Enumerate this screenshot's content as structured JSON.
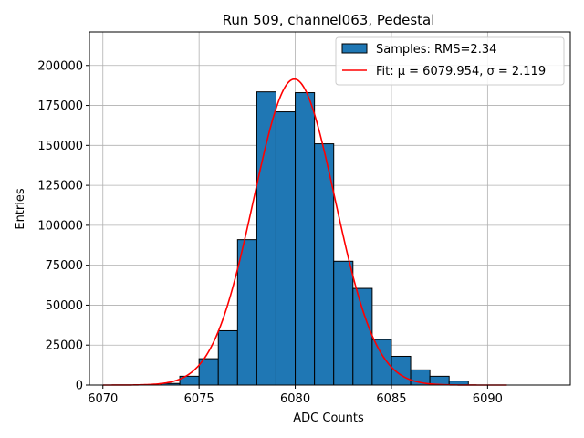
{
  "chart_data": {
    "type": "bar",
    "title": "Run 509, channel063, Pedestal",
    "xlabel": "ADC Counts",
    "ylabel": "Entries",
    "xlim": [
      6069.3,
      6094.3
    ],
    "ylim": [
      0,
      221000
    ],
    "xticks": [
      6070,
      6075,
      6080,
      6085,
      6090
    ],
    "yticks": [
      0,
      25000,
      50000,
      75000,
      100000,
      125000,
      150000,
      175000,
      200000
    ],
    "grid": true,
    "legend_position": "top-right",
    "colors": {
      "bar_fill": "#1f77b4",
      "bar_edge": "#000000",
      "fit_line": "#ff0000",
      "grid": "#b0b0b0"
    },
    "histogram": {
      "name": "Samples: RMS=2.34",
      "bin_width": 1,
      "bin_left_edges": [
        6073,
        6074,
        6075,
        6076,
        6077,
        6078,
        6079,
        6080,
        6081,
        6082,
        6083,
        6084,
        6085,
        6086,
        6087,
        6088
      ],
      "counts": [
        1000,
        5500,
        16500,
        34000,
        91000,
        183500,
        171000,
        183000,
        151000,
        77500,
        60500,
        28500,
        18000,
        9500,
        5500,
        2500
      ]
    },
    "fit": {
      "name": "Fit: μ = 6079.954, σ = 2.119",
      "mu": 6079.954,
      "sigma": 2.119,
      "amplitude": 191500,
      "x_range": [
        6070,
        6091
      ]
    }
  }
}
